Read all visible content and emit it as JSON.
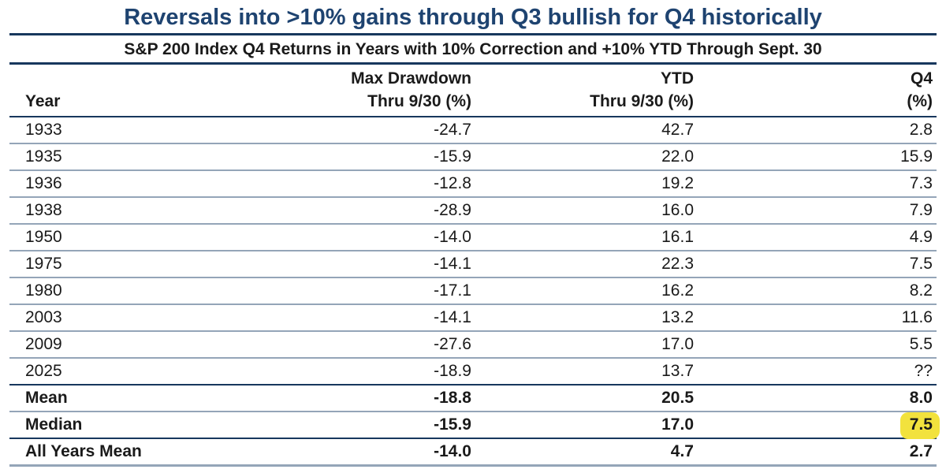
{
  "title": "Reversals into >10% gains through Q3 bullish for Q4 historically",
  "subtitle": "S&P 200 Index Q4 Returns in Years with 10% Correction and +10% YTD Through Sept. 30",
  "header": {
    "year": {
      "line1": "",
      "line2": "Year"
    },
    "max_drawdown": {
      "line1": "Max Drawdown",
      "line2": "Thru 9/30 (%)"
    },
    "ytd": {
      "line1": "YTD",
      "line2": "Thru 9/30 (%)"
    },
    "q4": {
      "line1": "Q4",
      "line2": "(%)"
    }
  },
  "chart_data": {
    "type": "table",
    "title": "Reversals into >10% gains through Q3 bullish for Q4 historically",
    "subtitle": "S&P 200 Index Q4 Returns in Years with 10% Correction and +10% YTD Through Sept. 30",
    "columns": [
      "Year",
      "Max Drawdown Thru 9/30 (%)",
      "YTD Thru 9/30 (%)",
      "Q4 (%)"
    ],
    "rows": [
      [
        "1933",
        "-24.7",
        "42.7",
        "2.8"
      ],
      [
        "1935",
        "-15.9",
        "22.0",
        "15.9"
      ],
      [
        "1936",
        "-12.8",
        "19.2",
        "7.3"
      ],
      [
        "1938",
        "-28.9",
        "16.0",
        "7.9"
      ],
      [
        "1950",
        "-14.0",
        "16.1",
        "4.9"
      ],
      [
        "1975",
        "-14.1",
        "22.3",
        "7.5"
      ],
      [
        "1980",
        "-17.1",
        "16.2",
        "8.2"
      ],
      [
        "2003",
        "-14.1",
        "13.2",
        "11.6"
      ],
      [
        "2009",
        "-27.6",
        "17.0",
        "5.5"
      ],
      [
        "2025",
        "-18.9",
        "13.7",
        "??"
      ]
    ],
    "summary_rows": [
      [
        "Mean",
        "-18.8",
        "20.5",
        "8.0"
      ],
      [
        "Median",
        "-15.9",
        "17.0",
        "7.5"
      ],
      [
        "All Years Mean",
        "-14.0",
        "4.7",
        "2.7"
      ]
    ],
    "highlight": {
      "row": "Median",
      "column": "Q4 (%)",
      "column_index": 3,
      "color": "#f2e23d"
    }
  },
  "colors": {
    "title_text": "#1e4370",
    "navy_line": "#17375d",
    "light_line": "#94a5b8",
    "highlight": "#f2e23d",
    "body_text": "#1a1a1a"
  }
}
